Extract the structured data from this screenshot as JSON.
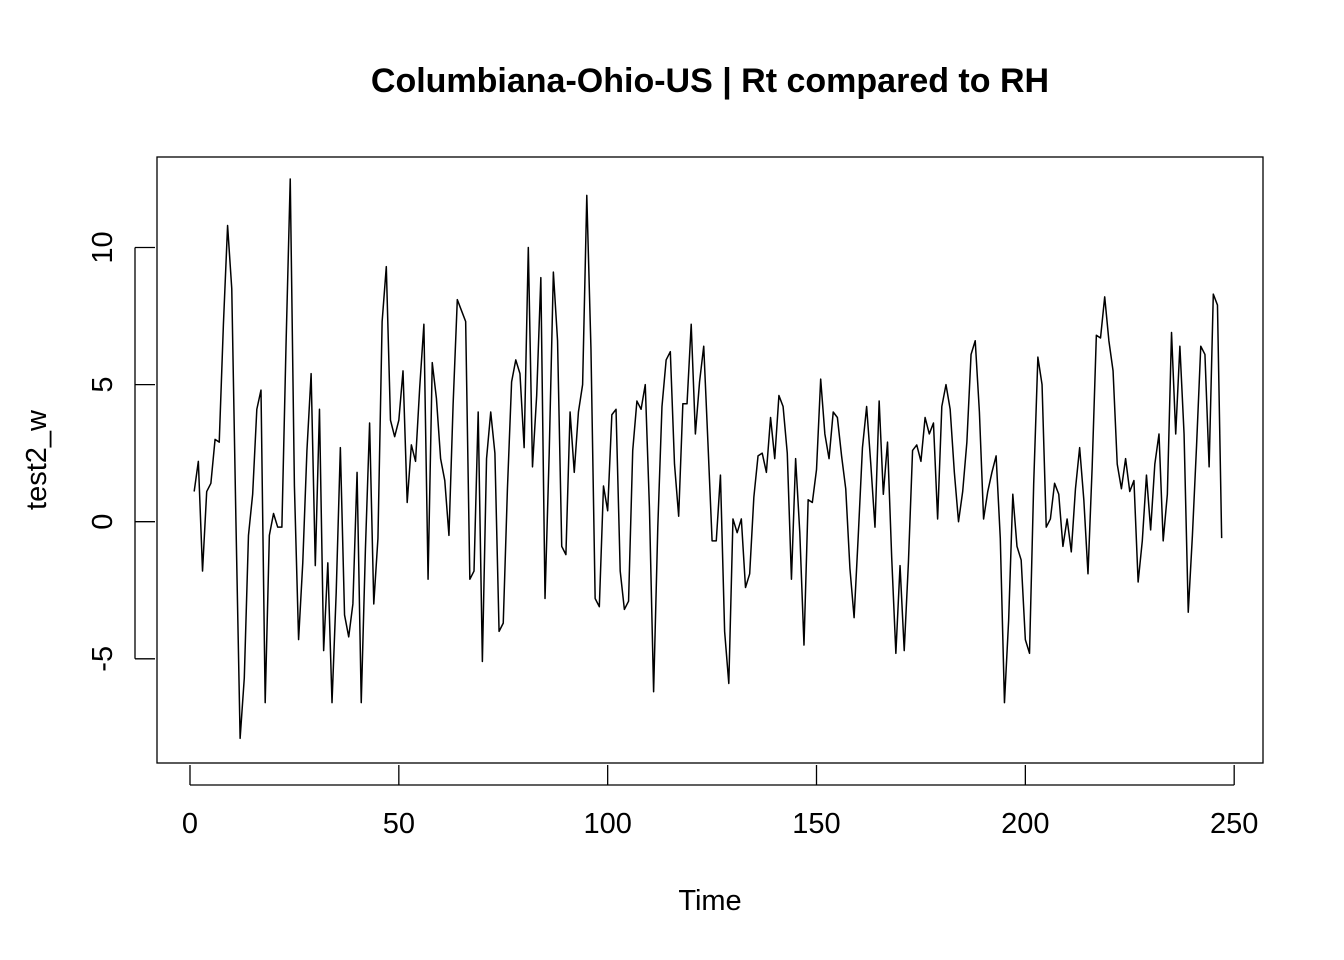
{
  "chart_data": {
    "type": "line",
    "title": "Columbiana-Ohio-US | Rt compared to RH",
    "xlabel": "Time",
    "ylabel": "test2_w",
    "xlim": [
      -7.9,
      256.9
    ],
    "ylim": [
      -8.8,
      13.3
    ],
    "x_ticks": [
      0,
      50,
      100,
      150,
      200,
      250
    ],
    "x_tick_labels": [
      "0",
      "50",
      "100",
      "150",
      "200",
      "250"
    ],
    "y_ticks": [
      -5,
      0,
      5,
      10
    ],
    "y_tick_labels": [
      "-5",
      "0",
      "5",
      "10"
    ],
    "grid": false,
    "legend": "none",
    "colors": {
      "line": "#000000",
      "frame": "#000000",
      "background": "#ffffff"
    },
    "series": [
      {
        "x_start": 1,
        "x_step": 1,
        "values": [
          1.1,
          2.2,
          -1.8,
          1.1,
          1.4,
          3.0,
          2.9,
          7.2,
          10.8,
          8.5,
          0.0,
          -7.9,
          -5.7,
          -0.5,
          1.0,
          4.1,
          4.8,
          -6.6,
          -0.5,
          0.3,
          -0.2,
          -0.2,
          6.5,
          12.5,
          1.3,
          -4.3,
          -1.5,
          2.6,
          5.4,
          -1.6,
          4.1,
          -4.7,
          -1.5,
          -6.6,
          -2.6,
          2.7,
          -3.4,
          -4.2,
          -3.0,
          1.8,
          -6.6,
          -1.0,
          3.6,
          -3.0,
          -0.6,
          7.3,
          9.3,
          3.7,
          3.1,
          3.7,
          5.5,
          0.7,
          2.8,
          2.2,
          4.9,
          7.2,
          -2.1,
          5.8,
          4.5,
          2.3,
          1.5,
          -0.5,
          4.3,
          8.1,
          7.7,
          7.3,
          -2.1,
          -1.8,
          4.0,
          -5.1,
          2.3,
          4.0,
          2.5,
          -4.0,
          -3.7,
          1.2,
          5.1,
          5.9,
          5.4,
          2.7,
          10.0,
          2.0,
          4.6,
          8.9,
          -2.8,
          2.5,
          9.1,
          6.6,
          -0.9,
          -1.2,
          4.0,
          1.8,
          4.0,
          5.0,
          11.9,
          6.3,
          -2.8,
          -3.1,
          1.3,
          0.4,
          3.9,
          4.1,
          -1.8,
          -3.2,
          -2.9,
          2.6,
          4.4,
          4.1,
          5.0,
          0.5,
          -6.2,
          -0.2,
          4.2,
          5.9,
          6.2,
          2.1,
          0.2,
          4.3,
          4.3,
          7.2,
          3.2,
          5.1,
          6.4,
          2.9,
          -0.7,
          -0.7,
          1.7,
          -4.0,
          -5.9,
          0.1,
          -0.4,
          0.1,
          -2.4,
          -1.9,
          0.9,
          2.4,
          2.5,
          1.8,
          3.8,
          2.3,
          4.6,
          4.2,
          2.5,
          -2.1,
          2.3,
          -0.4,
          -4.5,
          0.8,
          0.7,
          1.9,
          5.2,
          3.2,
          2.3,
          4.0,
          3.8,
          2.4,
          1.2,
          -1.7,
          -3.5,
          -0.5,
          2.7,
          4.2,
          2.1,
          -0.2,
          4.4,
          1.0,
          2.9,
          -1.3,
          -4.8,
          -1.6,
          -4.7,
          -1.5,
          2.6,
          2.8,
          2.2,
          3.8,
          3.2,
          3.6,
          0.1,
          4.2,
          5.0,
          4.1,
          1.8,
          0.0,
          1.1,
          2.9,
          6.1,
          6.6,
          4.0,
          0.1,
          1.1,
          1.8,
          2.4,
          -0.6,
          -6.6,
          -3.6,
          1.0,
          -0.9,
          -1.4,
          -4.3,
          -4.8,
          1.4,
          6.0,
          5.0,
          -0.2,
          0.1,
          1.4,
          1.0,
          -0.9,
          0.1,
          -1.1,
          1.2,
          2.7,
          0.8,
          -1.9,
          2.0,
          6.8,
          6.7,
          8.2,
          6.6,
          5.5,
          2.1,
          1.2,
          2.3,
          1.1,
          1.5,
          -2.2,
          -0.7,
          1.7,
          -0.3,
          2.1,
          3.2,
          -0.7,
          1.0,
          6.9,
          3.2,
          6.4,
          3.2,
          -3.3,
          -0.5,
          2.8,
          6.4,
          6.1,
          2.0,
          8.3,
          7.9,
          -0.6
        ]
      }
    ]
  }
}
